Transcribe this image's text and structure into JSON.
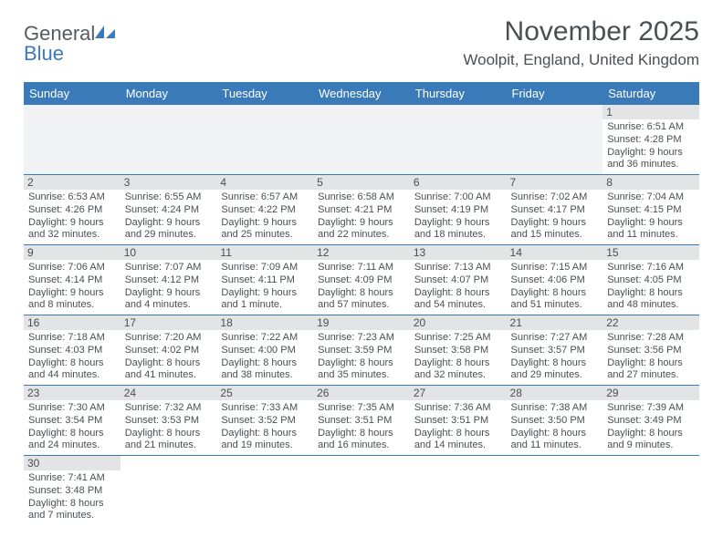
{
  "logo": {
    "text1": "General",
    "text2": "Blue"
  },
  "title": "November 2025",
  "location": "Woolpit, England, United Kingdom",
  "colors": {
    "header_bg": "#3a7ab8",
    "header_fg": "#ffffff",
    "daynum_bg": "#e2e4e6",
    "text": "#4a4f54",
    "rule": "#3a7ab8",
    "empty_bg": "#f1f2f3"
  },
  "day_headers": [
    "Sunday",
    "Monday",
    "Tuesday",
    "Wednesday",
    "Thursday",
    "Friday",
    "Saturday"
  ],
  "weeks": [
    [
      null,
      null,
      null,
      null,
      null,
      null,
      {
        "n": "1",
        "sunrise": "6:51 AM",
        "sunset": "4:28 PM",
        "daylight": "9 hours and 36 minutes."
      }
    ],
    [
      {
        "n": "2",
        "sunrise": "6:53 AM",
        "sunset": "4:26 PM",
        "daylight": "9 hours and 32 minutes."
      },
      {
        "n": "3",
        "sunrise": "6:55 AM",
        "sunset": "4:24 PM",
        "daylight": "9 hours and 29 minutes."
      },
      {
        "n": "4",
        "sunrise": "6:57 AM",
        "sunset": "4:22 PM",
        "daylight": "9 hours and 25 minutes."
      },
      {
        "n": "5",
        "sunrise": "6:58 AM",
        "sunset": "4:21 PM",
        "daylight": "9 hours and 22 minutes."
      },
      {
        "n": "6",
        "sunrise": "7:00 AM",
        "sunset": "4:19 PM",
        "daylight": "9 hours and 18 minutes."
      },
      {
        "n": "7",
        "sunrise": "7:02 AM",
        "sunset": "4:17 PM",
        "daylight": "9 hours and 15 minutes."
      },
      {
        "n": "8",
        "sunrise": "7:04 AM",
        "sunset": "4:15 PM",
        "daylight": "9 hours and 11 minutes."
      }
    ],
    [
      {
        "n": "9",
        "sunrise": "7:06 AM",
        "sunset": "4:14 PM",
        "daylight": "9 hours and 8 minutes."
      },
      {
        "n": "10",
        "sunrise": "7:07 AM",
        "sunset": "4:12 PM",
        "daylight": "9 hours and 4 minutes."
      },
      {
        "n": "11",
        "sunrise": "7:09 AM",
        "sunset": "4:11 PM",
        "daylight": "9 hours and 1 minute."
      },
      {
        "n": "12",
        "sunrise": "7:11 AM",
        "sunset": "4:09 PM",
        "daylight": "8 hours and 57 minutes."
      },
      {
        "n": "13",
        "sunrise": "7:13 AM",
        "sunset": "4:07 PM",
        "daylight": "8 hours and 54 minutes."
      },
      {
        "n": "14",
        "sunrise": "7:15 AM",
        "sunset": "4:06 PM",
        "daylight": "8 hours and 51 minutes."
      },
      {
        "n": "15",
        "sunrise": "7:16 AM",
        "sunset": "4:05 PM",
        "daylight": "8 hours and 48 minutes."
      }
    ],
    [
      {
        "n": "16",
        "sunrise": "7:18 AM",
        "sunset": "4:03 PM",
        "daylight": "8 hours and 44 minutes."
      },
      {
        "n": "17",
        "sunrise": "7:20 AM",
        "sunset": "4:02 PM",
        "daylight": "8 hours and 41 minutes."
      },
      {
        "n": "18",
        "sunrise": "7:22 AM",
        "sunset": "4:00 PM",
        "daylight": "8 hours and 38 minutes."
      },
      {
        "n": "19",
        "sunrise": "7:23 AM",
        "sunset": "3:59 PM",
        "daylight": "8 hours and 35 minutes."
      },
      {
        "n": "20",
        "sunrise": "7:25 AM",
        "sunset": "3:58 PM",
        "daylight": "8 hours and 32 minutes."
      },
      {
        "n": "21",
        "sunrise": "7:27 AM",
        "sunset": "3:57 PM",
        "daylight": "8 hours and 29 minutes."
      },
      {
        "n": "22",
        "sunrise": "7:28 AM",
        "sunset": "3:56 PM",
        "daylight": "8 hours and 27 minutes."
      }
    ],
    [
      {
        "n": "23",
        "sunrise": "7:30 AM",
        "sunset": "3:54 PM",
        "daylight": "8 hours and 24 minutes."
      },
      {
        "n": "24",
        "sunrise": "7:32 AM",
        "sunset": "3:53 PM",
        "daylight": "8 hours and 21 minutes."
      },
      {
        "n": "25",
        "sunrise": "7:33 AM",
        "sunset": "3:52 PM",
        "daylight": "8 hours and 19 minutes."
      },
      {
        "n": "26",
        "sunrise": "7:35 AM",
        "sunset": "3:51 PM",
        "daylight": "8 hours and 16 minutes."
      },
      {
        "n": "27",
        "sunrise": "7:36 AM",
        "sunset": "3:51 PM",
        "daylight": "8 hours and 14 minutes."
      },
      {
        "n": "28",
        "sunrise": "7:38 AM",
        "sunset": "3:50 PM",
        "daylight": "8 hours and 11 minutes."
      },
      {
        "n": "29",
        "sunrise": "7:39 AM",
        "sunset": "3:49 PM",
        "daylight": "8 hours and 9 minutes."
      }
    ],
    [
      {
        "n": "30",
        "sunrise": "7:41 AM",
        "sunset": "3:48 PM",
        "daylight": "8 hours and 7 minutes."
      },
      null,
      null,
      null,
      null,
      null,
      null
    ]
  ],
  "labels": {
    "sunrise": "Sunrise:",
    "sunset": "Sunset:",
    "daylight": "Daylight:"
  }
}
